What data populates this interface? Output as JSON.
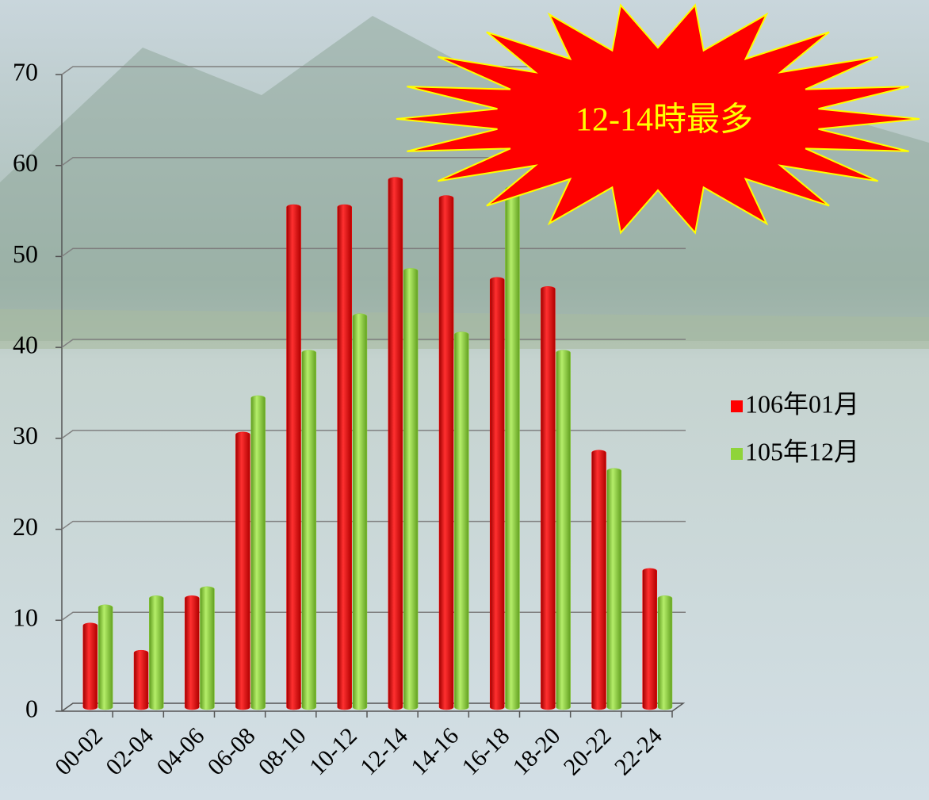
{
  "chart_data": {
    "type": "bar",
    "categories": [
      "00-02",
      "02-04",
      "04-06",
      "06-08",
      "08-10",
      "10-12",
      "12-14",
      "14-16",
      "16-18",
      "18-20",
      "20-22",
      "22-24"
    ],
    "series": [
      {
        "name": "106年01月",
        "color": "#ff0000",
        "values": [
          9,
          6,
          12,
          30,
          55,
          55,
          58,
          56,
          47,
          46,
          28,
          15
        ]
      },
      {
        "name": "105年12月",
        "color": "#8fd43a",
        "values": [
          11,
          12,
          13,
          34,
          39,
          43,
          48,
          41,
          57,
          39,
          26,
          12
        ]
      }
    ],
    "ylim": [
      0,
      70
    ],
    "yticks": [
      0,
      10,
      20,
      30,
      40,
      50,
      60,
      70
    ],
    "grid": true,
    "legend": "right",
    "annotation": "12-14時最多"
  }
}
